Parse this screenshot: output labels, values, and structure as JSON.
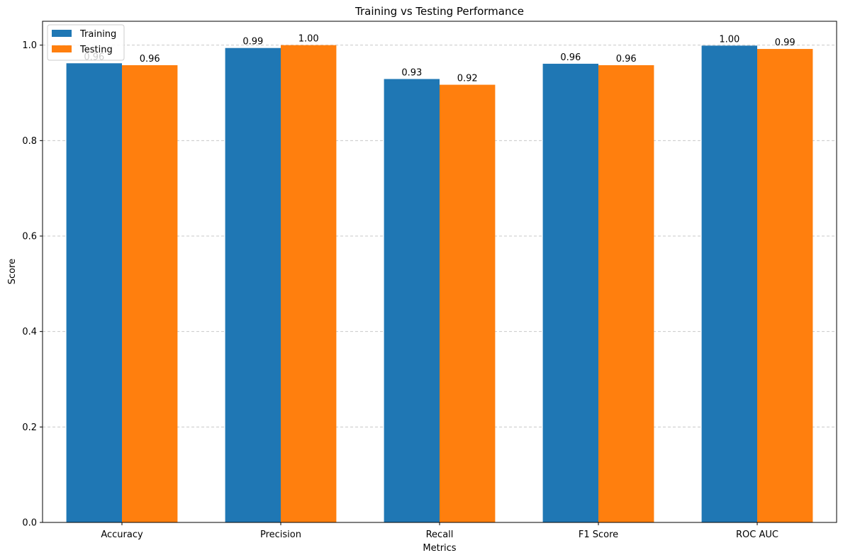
{
  "chart_data": {
    "type": "bar",
    "title": "Training vs Testing Performance",
    "xlabel": "Metrics",
    "ylabel": "Score",
    "categories": [
      "Accuracy",
      "Precision",
      "Recall",
      "F1 Score",
      "ROC AUC"
    ],
    "series": [
      {
        "name": "Training",
        "color": "#1f77b4",
        "values": [
          0.962,
          0.994,
          0.929,
          0.961,
          0.999
        ],
        "labels": [
          "0.96",
          "0.99",
          "0.93",
          "0.96",
          "1.00"
        ]
      },
      {
        "name": "Testing",
        "color": "#ff7f0e",
        "values": [
          0.958,
          1.0,
          0.917,
          0.958,
          0.992
        ],
        "labels": [
          "0.96",
          "1.00",
          "0.92",
          "0.96",
          "0.99"
        ]
      }
    ],
    "ylim": [
      0,
      1.05
    ],
    "yticks": [
      0.0,
      0.2,
      0.4,
      0.6,
      0.8,
      1.0
    ],
    "ytick_labels": [
      "0.0",
      "0.2",
      "0.4",
      "0.6",
      "0.8",
      "1.0"
    ],
    "grid": "y-dashed",
    "legend_position": "top-left"
  }
}
